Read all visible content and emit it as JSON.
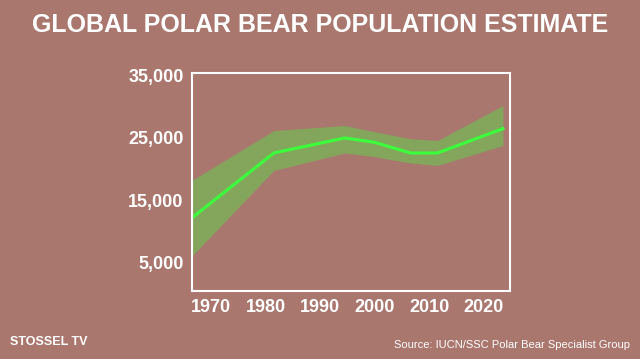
{
  "chart_data": {
    "type": "line",
    "title": "GLOBAL POLAR BEAR POPULATION ESTIMATE",
    "source": "Source: IUCN/SSC Polar Bear Specialist Group",
    "logo": "STOSSEL TV",
    "x": [
      1966.5,
      1981.5,
      1994.5,
      2000,
      2006.5,
      2011.5,
      2023.5
    ],
    "series": [
      {
        "name": "Estimate",
        "color": "#3cff3c",
        "values": [
          12200,
          22600,
          25000,
          24300,
          22600,
          22600,
          26500
        ],
        "lower": [
          6100,
          19800,
          22600,
          22000,
          21000,
          20600,
          23800
        ],
        "upper": [
          18200,
          26200,
          27000,
          26000,
          24900,
          24600,
          30200
        ]
      }
    ],
    "xlim": [
      1966.5,
      2024.8
    ],
    "xticks": [
      1970,
      1980,
      1990,
      2000,
      2010,
      2020
    ],
    "ylim": [
      500,
      35500
    ],
    "yticks": [
      {
        "value": 5000,
        "label": "5,000"
      },
      {
        "value": 15000,
        "label": "15,000"
      },
      {
        "value": 25000,
        "label": "25,000"
      },
      {
        "value": 35000,
        "label": "35,000"
      }
    ],
    "grid": false
  }
}
